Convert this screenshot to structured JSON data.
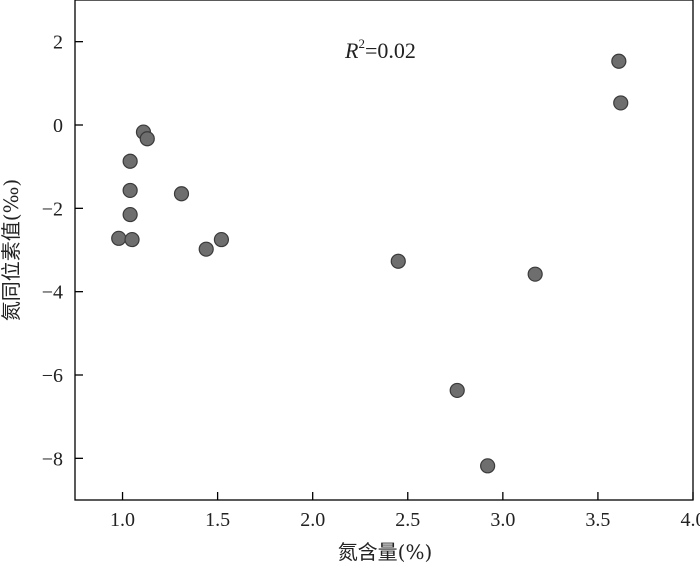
{
  "chart_data": {
    "type": "scatter",
    "title": "",
    "xlabel": "氮含量(%)",
    "ylabel": "氮同位素值(‰)",
    "xlim": [
      0.75,
      4.0
    ],
    "ylim": [
      -9.0,
      3.0
    ],
    "x_ticks": [
      1.0,
      1.5,
      2.0,
      2.5,
      3.0,
      3.5,
      4.0
    ],
    "x_tick_labels": [
      "1.0",
      "1.5",
      "2.0",
      "2.5",
      "3.0",
      "3.5",
      "4.0"
    ],
    "y_ticks": [
      -8,
      -6,
      -4,
      -2,
      0,
      2
    ],
    "y_tick_labels": [
      "−8",
      "−6",
      "−4",
      "−2",
      "0",
      "2"
    ],
    "grid": false,
    "marker_color": "#6e6e6e",
    "marker_edge_color": "#3a3a3a",
    "annotation": {
      "text_prefix": "R",
      "text_superscript": "2",
      "text_suffix": "=0.02"
    },
    "points": [
      {
        "x": 0.98,
        "y": -2.72
      },
      {
        "x": 1.04,
        "y": -0.87
      },
      {
        "x": 1.04,
        "y": -1.57
      },
      {
        "x": 1.04,
        "y": -2.15
      },
      {
        "x": 1.05,
        "y": -2.75
      },
      {
        "x": 1.11,
        "y": -0.17
      },
      {
        "x": 1.13,
        "y": -0.33
      },
      {
        "x": 1.31,
        "y": -1.65
      },
      {
        "x": 1.44,
        "y": -2.98
      },
      {
        "x": 1.52,
        "y": -2.75
      },
      {
        "x": 2.45,
        "y": -3.27
      },
      {
        "x": 2.76,
        "y": -6.37
      },
      {
        "x": 2.92,
        "y": -8.18
      },
      {
        "x": 3.17,
        "y": -3.58
      },
      {
        "x": 3.61,
        "y": 1.53
      },
      {
        "x": 3.62,
        "y": 0.53
      }
    ]
  }
}
